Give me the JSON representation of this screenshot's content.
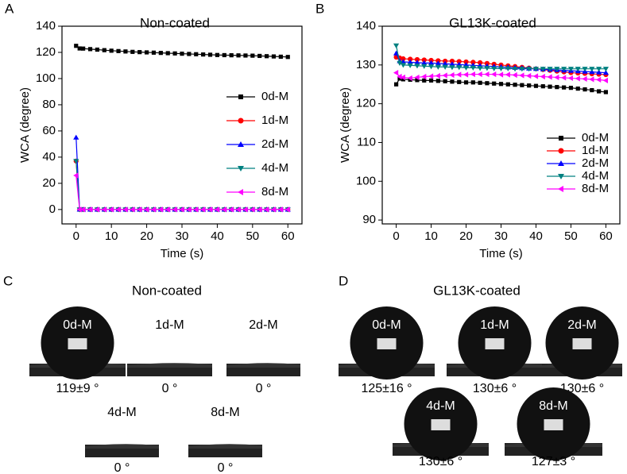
{
  "chart_data": [
    {
      "type": "line",
      "panel": "A",
      "title": "Non-coated",
      "x_label": "Time (s)",
      "y_label": "WCA (degree)",
      "x": [
        0,
        1,
        2,
        4,
        6,
        8,
        10,
        12,
        14,
        16,
        18,
        20,
        22,
        24,
        26,
        28,
        30,
        32,
        34,
        36,
        38,
        40,
        42,
        44,
        46,
        48,
        50,
        52,
        54,
        56,
        58,
        60
      ],
      "xlim": [
        -4,
        64
      ],
      "xticks": [
        0,
        10,
        20,
        30,
        40,
        50,
        60
      ],
      "ylim": [
        -11,
        140
      ],
      "yticks": [
        0,
        20,
        40,
        60,
        80,
        100,
        120,
        140
      ],
      "legend": "right",
      "series": [
        {
          "name": "0d-M",
          "color": "#000000",
          "marker": "square",
          "values": [
            125,
            123,
            122.9,
            122.5,
            122.1,
            121.7,
            121.3,
            121.0,
            120.7,
            120.4,
            120.2,
            120.0,
            119.8,
            119.6,
            119.4,
            119.2,
            119.0,
            118.8,
            118.6,
            118.4,
            118.2,
            118.0,
            117.9,
            117.8,
            117.7,
            117.6,
            117.5,
            117.3,
            117.1,
            116.9,
            116.7,
            116.5
          ]
        },
        {
          "name": "1d-M",
          "color": "#ff0000",
          "marker": "circle",
          "values": [
            37,
            0,
            0,
            0,
            0,
            0,
            0,
            0,
            0,
            0,
            0,
            0,
            0,
            0,
            0,
            0,
            0,
            0,
            0,
            0,
            0,
            0,
            0,
            0,
            0,
            0,
            0,
            0,
            0,
            0,
            0,
            0
          ]
        },
        {
          "name": "2d-M",
          "color": "#0000ff",
          "marker": "triangle-up",
          "values": [
            55,
            0,
            0,
            0,
            0,
            0,
            0,
            0,
            0,
            0,
            0,
            0,
            0,
            0,
            0,
            0,
            0,
            0,
            0,
            0,
            0,
            0,
            0,
            0,
            0,
            0,
            0,
            0,
            0,
            0,
            0,
            0
          ]
        },
        {
          "name": "4d-M",
          "color": "#008080",
          "marker": "triangle-down",
          "values": [
            37,
            0,
            0,
            0,
            0,
            0,
            0,
            0,
            0,
            0,
            0,
            0,
            0,
            0,
            0,
            0,
            0,
            0,
            0,
            0,
            0,
            0,
            0,
            0,
            0,
            0,
            0,
            0,
            0,
            0,
            0,
            0
          ]
        },
        {
          "name": "8d-M",
          "color": "#ff00ff",
          "marker": "triangle-left",
          "values": [
            26,
            0,
            0,
            0,
            0,
            0,
            0,
            0,
            0,
            0,
            0,
            0,
            0,
            0,
            0,
            0,
            0,
            0,
            0,
            0,
            0,
            0,
            0,
            0,
            0,
            0,
            0,
            0,
            0,
            0,
            0,
            0
          ]
        }
      ]
    },
    {
      "type": "line",
      "panel": "B",
      "title": "GL13K-coated",
      "x_label": "Time (s)",
      "y_label": "WCA (degree)",
      "x": [
        0,
        1,
        2,
        4,
        6,
        8,
        10,
        12,
        14,
        16,
        18,
        20,
        22,
        24,
        26,
        28,
        30,
        32,
        34,
        36,
        38,
        40,
        42,
        44,
        46,
        48,
        50,
        52,
        54,
        56,
        58,
        60
      ],
      "xlim": [
        -4,
        64
      ],
      "xticks": [
        0,
        10,
        20,
        30,
        40,
        50,
        60
      ],
      "ylim": [
        89,
        140
      ],
      "yticks": [
        90,
        100,
        110,
        120,
        130,
        140
      ],
      "legend": "lower right",
      "series": [
        {
          "name": "0d-M",
          "color": "#000000",
          "marker": "square",
          "values": [
            125,
            126.5,
            126.3,
            126.2,
            126.1,
            126.0,
            126.0,
            125.9,
            125.8,
            125.7,
            125.6,
            125.5,
            125.5,
            125.4,
            125.3,
            125.2,
            125.1,
            125.0,
            124.9,
            124.8,
            124.7,
            124.6,
            124.5,
            124.4,
            124.3,
            124.2,
            124.1,
            123.9,
            123.7,
            123.5,
            123.2,
            123.0
          ]
        },
        {
          "name": "1d-M",
          "color": "#ff0000",
          "marker": "circle",
          "values": [
            132,
            131.8,
            131.6,
            131.5,
            131.4,
            131.3,
            131.2,
            131.1,
            131.0,
            131.0,
            130.9,
            130.8,
            130.7,
            130.6,
            130.4,
            130.2,
            130.0,
            129.8,
            129.6,
            129.4,
            129.2,
            129.0,
            128.8,
            128.6,
            128.4,
            128.2,
            128.0,
            127.9,
            127.8,
            127.7,
            127.6,
            127.5
          ]
        },
        {
          "name": "2d-M",
          "color": "#0000ff",
          "marker": "triangle-up",
          "values": [
            133,
            131,
            130.8,
            130.7,
            130.6,
            130.5,
            130.5,
            130.4,
            130.3,
            130.2,
            130.1,
            130.0,
            129.9,
            129.8,
            129.7,
            129.6,
            129.5,
            129.4,
            129.3,
            129.2,
            129.1,
            129.0,
            128.9,
            128.8,
            128.7,
            128.6,
            128.5,
            128.4,
            128.3,
            128.2,
            128.1,
            128.0
          ]
        },
        {
          "name": "4d-M",
          "color": "#008080",
          "marker": "triangle-down",
          "values": [
            135,
            130.5,
            130.0,
            129.9,
            129.8,
            129.7,
            129.6,
            129.5,
            129.5,
            129.4,
            129.4,
            129.3,
            129.3,
            129.2,
            129.2,
            129.1,
            129.1,
            129.1,
            129.0,
            129.0,
            129.0,
            129.0,
            129.0,
            129.0,
            129.0,
            129.0,
            129.0,
            129.0,
            129.0,
            129.0,
            129.0,
            129.0
          ]
        },
        {
          "name": "8d-M",
          "color": "#ff00ff",
          "marker": "triangle-left",
          "values": [
            128,
            127,
            126.8,
            126.6,
            126.8,
            127.0,
            127.1,
            127.2,
            127.3,
            127.4,
            127.5,
            127.5,
            127.6,
            127.6,
            127.6,
            127.6,
            127.5,
            127.5,
            127.4,
            127.3,
            127.2,
            127.1,
            127.0,
            126.9,
            126.8,
            126.7,
            126.6,
            126.5,
            126.4,
            126.3,
            126.2,
            126.0
          ]
        }
      ]
    }
  ],
  "photos": [
    {
      "panel": "C",
      "title": "Non-coated",
      "items": [
        {
          "label": "0d-M",
          "caption": "119±9 °"
        },
        {
          "label": "1d-M",
          "caption": "0 °"
        },
        {
          "label": "2d-M",
          "caption": "0 °"
        },
        {
          "label": "4d-M",
          "caption": "0 °"
        },
        {
          "label": "8d-M",
          "caption": "0 °"
        }
      ]
    },
    {
      "panel": "D",
      "title": "GL13K-coated",
      "items": [
        {
          "label": "0d-M",
          "caption": "125±16 °"
        },
        {
          "label": "1d-M",
          "caption": "130±6 °"
        },
        {
          "label": "2d-M",
          "caption": "130±6 °"
        },
        {
          "label": "4d-M",
          "caption": "130±6 °"
        },
        {
          "label": "8d-M",
          "caption": "127±3 °"
        }
      ]
    }
  ]
}
